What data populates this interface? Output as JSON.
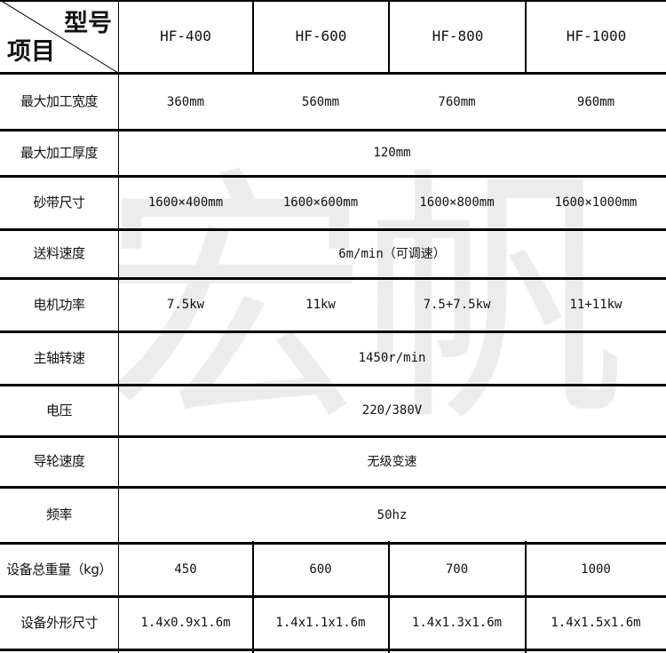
{
  "watermark": "宏帆",
  "header": {
    "model_label": "型号",
    "item_label": "项目",
    "models": [
      "HF-400",
      "HF-600",
      "HF-800",
      "HF-1000"
    ]
  },
  "rows": [
    {
      "label": "最大加工宽度",
      "values": [
        "360mm",
        "560mm",
        "760mm",
        "960mm"
      ]
    },
    {
      "label": "最大加工厚度",
      "value": "120mm"
    },
    {
      "label": "砂带尺寸",
      "values": [
        "1600×400mm",
        "1600×600mm",
        "1600×800mm",
        "1600×1000mm"
      ]
    },
    {
      "label": "送料速度",
      "value": "6m/min（可调速）"
    },
    {
      "label": "电机功率",
      "values": [
        "7.5kw",
        "11kw",
        "7.5+7.5kw",
        "11+11kw"
      ]
    },
    {
      "label": "主轴转速",
      "value": "1450r/min"
    },
    {
      "label": "电压",
      "value": "220/380V"
    },
    {
      "label": "导轮速度",
      "value": "无级变速"
    },
    {
      "label": "频率",
      "value": "50hz"
    },
    {
      "label": "设备总重量（kg）",
      "values": [
        "450",
        "600",
        "700",
        "1000"
      ]
    },
    {
      "label": "设备外形尺寸",
      "values": [
        "1.4x0.9x1.6m",
        "1.4x1.1x1.6m",
        "1.4x1.3x1.6m",
        "1.4x1.5x1.6m"
      ]
    }
  ]
}
